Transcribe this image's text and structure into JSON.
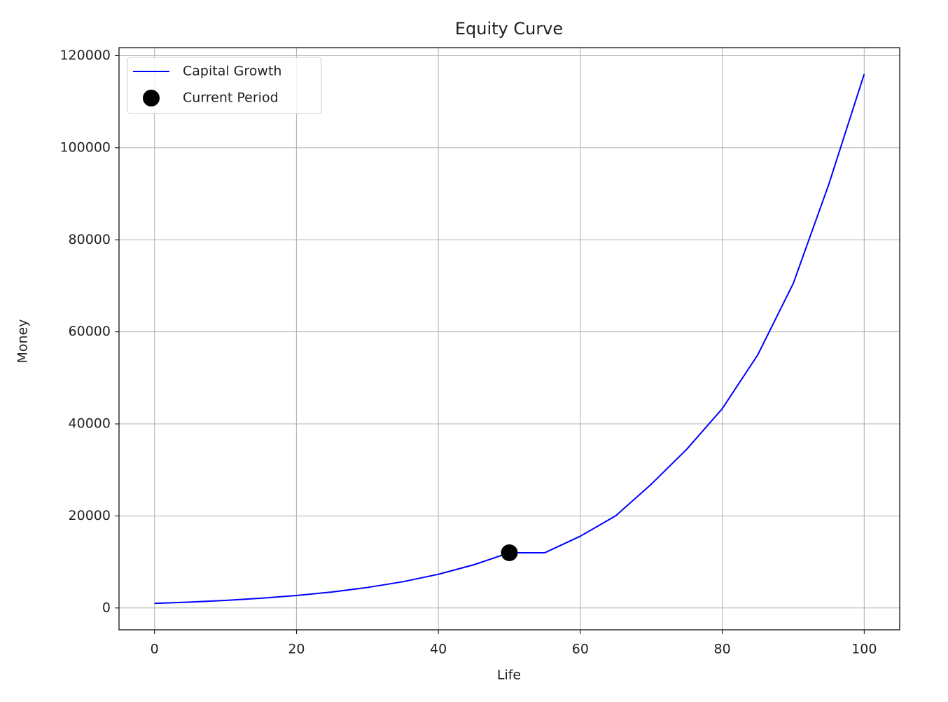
{
  "chart_data": {
    "type": "line",
    "title": "Equity Curve",
    "x_label": "Life",
    "y_label": "Money",
    "x": [
      0,
      5,
      10,
      15,
      20,
      25,
      30,
      35,
      40,
      45,
      50,
      55,
      60,
      65,
      70,
      75,
      80,
      85,
      90,
      95,
      100
    ],
    "series": [
      {
        "name": "Capital Growth",
        "color": "#0000ff",
        "kind": "line",
        "values": [
          1000,
          1283,
          1645,
          2110,
          2706,
          3470,
          4451,
          5708,
          7321,
          9389,
          12000,
          12000,
          15600,
          20050,
          26900,
          34500,
          43300,
          55000,
          70500,
          92000,
          116000
        ]
      },
      {
        "name": "Current Period",
        "color": "#000000",
        "kind": "marker",
        "x": [
          50
        ],
        "values": [
          12000
        ]
      }
    ],
    "xlim": [
      -5,
      105
    ],
    "ylim": [
      -4750,
      121750
    ],
    "xticks": [
      0,
      20,
      40,
      60,
      80,
      100
    ],
    "yticks": [
      0,
      20000,
      40000,
      60000,
      80000,
      100000,
      120000
    ],
    "grid": true,
    "legend": "upper left"
  }
}
